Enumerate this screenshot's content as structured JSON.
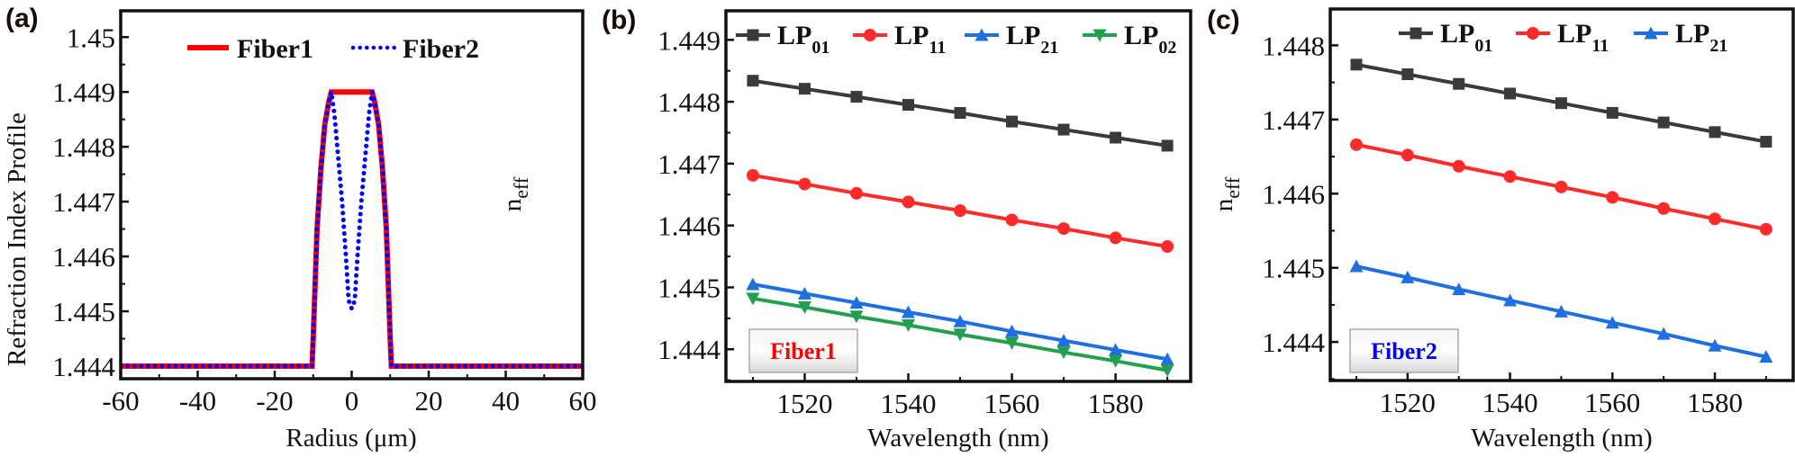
{
  "chart_data": [
    {
      "panel_label": "(a)",
      "type": "line",
      "xlabel": "Radius (μm)",
      "ylabel": "Refraction Index Profile",
      "xlim": [
        -60,
        60
      ],
      "ylim": [
        1.44377,
        1.45048
      ],
      "xticks": [
        -60,
        -40,
        -20,
        0,
        20,
        40,
        60
      ],
      "yticks": [
        1.444,
        1.445,
        1.446,
        1.447,
        1.448,
        1.449,
        1.45
      ],
      "ytick_labels": [
        "1.444",
        "1.445",
        "1.446",
        "1.447",
        "1.448",
        "1.449",
        "1.45"
      ],
      "legend_position": "top",
      "series": [
        {
          "name": "Fiber1",
          "color": "#ff0000",
          "style": "solid",
          "x": [
            -60,
            -10.3,
            -10,
            -9,
            -8,
            -7,
            -6,
            -5.3,
            5.3,
            6,
            7,
            8,
            9,
            10,
            10.3,
            60
          ],
          "y": [
            1.444,
            1.444,
            1.4445,
            1.4465,
            1.4476,
            1.4484,
            1.4488,
            1.449,
            1.449,
            1.4488,
            1.4484,
            1.4476,
            1.4465,
            1.4445,
            1.444,
            1.444
          ]
        },
        {
          "name": "Fiber2",
          "color": "#0000ff",
          "style": "dotted",
          "x": [
            -60,
            -10.3,
            -10,
            -9,
            -8,
            -7,
            -6,
            -5.3,
            -4.5,
            -3.5,
            -2.5,
            -1.5,
            -0.8,
            0,
            0.8,
            1.5,
            2.5,
            3.5,
            4.5,
            5.3,
            6,
            7,
            8,
            9,
            10,
            10.3,
            60
          ],
          "y": [
            1.444,
            1.444,
            1.4445,
            1.4465,
            1.4476,
            1.4484,
            1.4488,
            1.449,
            1.4486,
            1.4478,
            1.447,
            1.446,
            1.4452,
            1.44505,
            1.4452,
            1.446,
            1.447,
            1.4478,
            1.4486,
            1.449,
            1.4488,
            1.4484,
            1.4476,
            1.4465,
            1.4445,
            1.444,
            1.444
          ]
        }
      ]
    },
    {
      "panel_label": "(b)",
      "type": "line",
      "xlabel": "Wavelength (nm)",
      "ylabel": "n",
      "ylabel_sub": "eff",
      "xlim": [
        1504.8,
        1594.5
      ],
      "ylim": [
        1.44348,
        1.44947
      ],
      "xticks": [
        1520,
        1540,
        1560,
        1580
      ],
      "yticks": [
        1.444,
        1.445,
        1.446,
        1.447,
        1.448,
        1.449
      ],
      "ytick_labels": [
        "1.444",
        "1.445",
        "1.446",
        "1.447",
        "1.448",
        "1.449"
      ],
      "legend_position": "top",
      "tag": {
        "text": "Fiber1",
        "color": "#ff0000"
      },
      "x": [
        1510,
        1520,
        1530,
        1540,
        1550,
        1560,
        1570,
        1580,
        1590
      ],
      "series": [
        {
          "name": "LP",
          "sub": "01",
          "color": "#3a3a3a",
          "marker": "square",
          "values": [
            1.44834,
            1.44821,
            1.44808,
            1.44795,
            1.44782,
            1.44768,
            1.44755,
            1.44742,
            1.44729
          ]
        },
        {
          "name": "LP",
          "sub": "11",
          "color": "#ff2a2a",
          "marker": "circle",
          "values": [
            1.44681,
            1.44667,
            1.44652,
            1.44638,
            1.44624,
            1.44609,
            1.44595,
            1.4458,
            1.44566
          ]
        },
        {
          "name": "LP",
          "sub": "21",
          "color": "#1f6fe0",
          "marker": "triangle-up",
          "values": [
            1.44505,
            1.4449,
            1.44475,
            1.4446,
            1.44445,
            1.44429,
            1.44414,
            1.44399,
            1.44384
          ]
        },
        {
          "name": "LP",
          "sub": "02",
          "color": "#22a050",
          "marker": "triangle-down",
          "values": [
            1.44482,
            1.44468,
            1.44453,
            1.44439,
            1.44424,
            1.4441,
            1.44395,
            1.44381,
            1.44366
          ]
        }
      ]
    },
    {
      "panel_label": "(c)",
      "type": "line",
      "xlabel": "Wavelength (nm)",
      "ylabel": "n",
      "ylabel_sub": "eff",
      "xlim": [
        1504.9,
        1595.3
      ],
      "ylim": [
        1.44348,
        1.44849
      ],
      "xticks": [
        1520,
        1540,
        1560,
        1580
      ],
      "yticks": [
        1.444,
        1.445,
        1.446,
        1.447,
        1.448
      ],
      "ytick_labels": [
        "1.444",
        "1.445",
        "1.446",
        "1.447",
        "1.448"
      ],
      "legend_position": "top",
      "tag": {
        "text": "Fiber2",
        "color": "#0000ff"
      },
      "x": [
        1510,
        1520,
        1530,
        1540,
        1550,
        1560,
        1570,
        1580,
        1590
      ],
      "series": [
        {
          "name": "LP",
          "sub": "01",
          "color": "#3a3a3a",
          "marker": "square",
          "values": [
            1.44774,
            1.44761,
            1.44748,
            1.44735,
            1.44722,
            1.44709,
            1.44696,
            1.44683,
            1.4467
          ]
        },
        {
          "name": "LP",
          "sub": "11",
          "color": "#ff2a2a",
          "marker": "circle",
          "values": [
            1.44666,
            1.44652,
            1.44637,
            1.44623,
            1.44609,
            1.44595,
            1.4458,
            1.44566,
            1.44552
          ]
        },
        {
          "name": "LP",
          "sub": "21",
          "color": "#1f6fe0",
          "marker": "triangle-up",
          "values": [
            1.44502,
            1.44487,
            1.44471,
            1.44456,
            1.44441,
            1.44426,
            1.44411,
            1.44395,
            1.4438
          ]
        }
      ]
    }
  ]
}
